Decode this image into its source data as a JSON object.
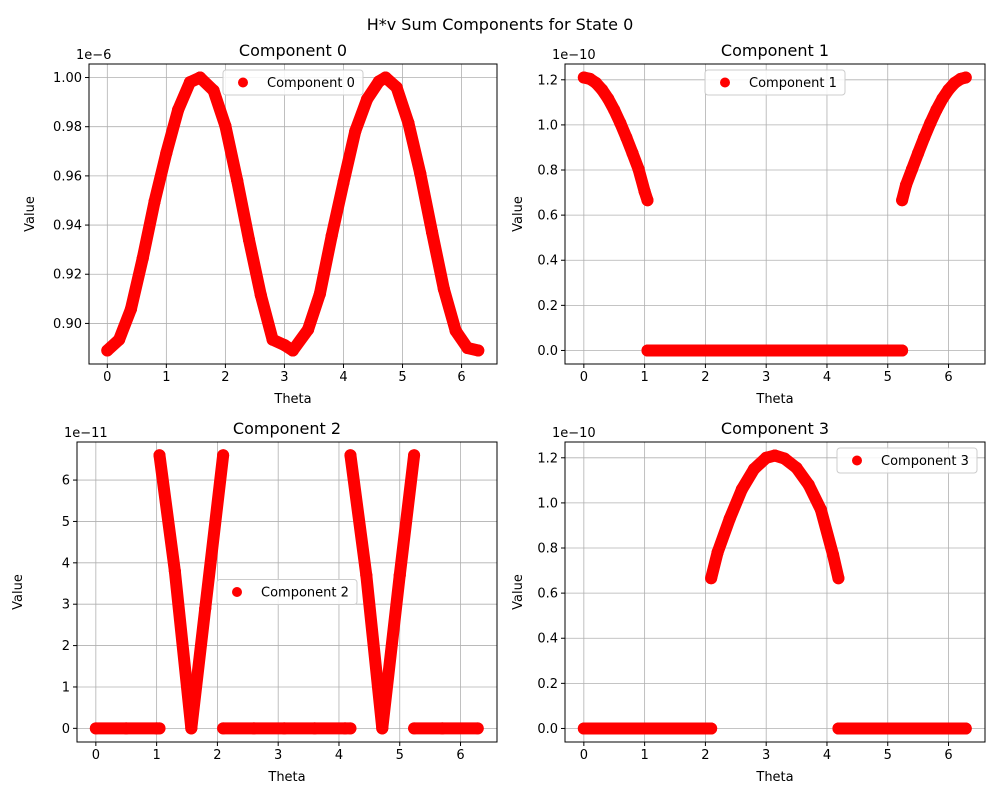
{
  "figure": {
    "title": "H*v Sum Components for State 0"
  },
  "chart_data": [
    {
      "type": "scatter",
      "title": "Component 0",
      "xlabel": "Theta",
      "ylabel": "Value",
      "scale_label": "1e−6",
      "xlim": [
        -0.31,
        6.6
      ],
      "ylim": [
        0.8835,
        1.0055
      ],
      "xticks": [
        0,
        1,
        2,
        3,
        4,
        5,
        6
      ],
      "xtick_labels": [
        "0",
        "1",
        "2",
        "3",
        "4",
        "5",
        "6"
      ],
      "yticks": [
        0.9,
        0.92,
        0.94,
        0.96,
        0.98,
        1.0
      ],
      "ytick_labels": [
        "0.90",
        "0.92",
        "0.94",
        "0.96",
        "0.98",
        "1.00"
      ],
      "grid": true,
      "legend": {
        "label": "Component 0",
        "position": "upper center"
      },
      "series": [
        {
          "name": "Component 0",
          "color": "#ff0000",
          "x": [
            0,
            0.2,
            0.4,
            0.6,
            0.8,
            1.0,
            1.2,
            1.4,
            1.5708,
            1.8,
            2.0,
            2.2,
            2.4,
            2.6,
            2.8,
            3.0,
            3.1416,
            3.4,
            3.6,
            3.8,
            4.0,
            4.2,
            4.4,
            4.6,
            4.7124,
            4.9,
            5.1,
            5.3,
            5.5,
            5.7,
            5.9,
            6.1,
            6.2832
          ],
          "y": [
            0.889,
            0.8934,
            0.9058,
            0.9265,
            0.9495,
            0.9693,
            0.9869,
            0.9981,
            1.0,
            0.9947,
            0.9803,
            0.9581,
            0.934,
            0.9115,
            0.8934,
            0.8912,
            0.889,
            0.8975,
            0.912,
            0.9356,
            0.9573,
            0.9782,
            0.9912,
            0.9984,
            1.0,
            0.996,
            0.9815,
            0.961,
            0.9371,
            0.914,
            0.897,
            0.89,
            0.889
          ]
        }
      ]
    },
    {
      "type": "scatter",
      "title": "Component 1",
      "xlabel": "Theta",
      "ylabel": "Value",
      "scale_label": "1e−10",
      "xlim": [
        -0.31,
        6.6
      ],
      "ylim": [
        -0.06,
        1.27
      ],
      "xticks": [
        0,
        1,
        2,
        3,
        4,
        5,
        6
      ],
      "xtick_labels": [
        "0",
        "1",
        "2",
        "3",
        "4",
        "5",
        "6"
      ],
      "yticks": [
        0.0,
        0.2,
        0.4,
        0.6,
        0.8,
        1.0,
        1.2
      ],
      "ytick_labels": [
        "0.0",
        "0.2",
        "0.4",
        "0.6",
        "0.8",
        "1.0",
        "1.2"
      ],
      "grid": true,
      "legend": {
        "label": "Component 1",
        "position": "upper center"
      },
      "series": [
        {
          "name": "Component 1",
          "color": "#ff0000",
          "x": [
            0,
            0.1,
            0.2,
            0.3,
            0.4,
            0.5,
            0.6,
            0.7,
            0.8,
            0.9,
            1.0,
            1.0472,
            1.0473,
            1.5,
            2.0,
            2.5,
            3.0,
            3.5,
            4.0,
            4.5,
            5.0,
            5.2359,
            5.236,
            5.3,
            5.4,
            5.5,
            5.6,
            5.7,
            5.8,
            5.9,
            6.0,
            6.1,
            6.2,
            6.2832
          ],
          "y": [
            1.21,
            1.204,
            1.186,
            1.156,
            1.116,
            1.066,
            1.008,
            0.944,
            0.875,
            0.804,
            0.705,
            0.666,
            0.0,
            0.0,
            0.0,
            0.0,
            0.0,
            0.0,
            0.0,
            0.0,
            0.0,
            0.0,
            0.666,
            0.733,
            0.804,
            0.875,
            0.944,
            1.008,
            1.066,
            1.116,
            1.156,
            1.186,
            1.204,
            1.21
          ]
        }
      ]
    },
    {
      "type": "scatter",
      "title": "Component 2",
      "xlabel": "Theta",
      "ylabel": "Value",
      "scale_label": "1e−11",
      "xlim": [
        -0.31,
        6.6
      ],
      "ylim": [
        -0.33,
        6.92
      ],
      "xticks": [
        0,
        1,
        2,
        3,
        4,
        5,
        6
      ],
      "xtick_labels": [
        "0",
        "1",
        "2",
        "3",
        "4",
        "5",
        "6"
      ],
      "yticks": [
        0,
        1,
        2,
        3,
        4,
        5,
        6
      ],
      "ytick_labels": [
        "0",
        "1",
        "2",
        "3",
        "4",
        "5",
        "6"
      ],
      "grid": true,
      "legend": {
        "label": "Component 2",
        "position": "center"
      },
      "series": [
        {
          "name": "Component 2",
          "color": "#ff0000",
          "x": [
            0,
            0.5,
            1.0,
            1.0471,
            1.0472,
            1.3,
            1.5708,
            1.8,
            2.0944,
            2.0945,
            2.6,
            3.1,
            3.6,
            4.1,
            4.1887,
            4.1888,
            4.45,
            4.7124,
            5.0,
            5.236,
            5.2361,
            5.7,
            6.2832
          ],
          "y": [
            0,
            0,
            0,
            0,
            6.6,
            3.8,
            0,
            2.9,
            6.6,
            0,
            0,
            0,
            0,
            0,
            0,
            6.6,
            3.7,
            0,
            3.7,
            6.6,
            0,
            0,
            0
          ]
        }
      ]
    },
    {
      "type": "scatter",
      "title": "Component 3",
      "xlabel": "Theta",
      "ylabel": "Value",
      "scale_label": "1e−10",
      "xlim": [
        -0.31,
        6.6
      ],
      "ylim": [
        -0.06,
        1.27
      ],
      "xticks": [
        0,
        1,
        2,
        3,
        4,
        5,
        6
      ],
      "xtick_labels": [
        "0",
        "1",
        "2",
        "3",
        "4",
        "5",
        "6"
      ],
      "yticks": [
        0.0,
        0.2,
        0.4,
        0.6,
        0.8,
        1.0,
        1.2
      ],
      "ytick_labels": [
        "0.0",
        "0.2",
        "0.4",
        "0.6",
        "0.8",
        "1.0",
        "1.2"
      ],
      "grid": true,
      "legend": {
        "label": "Component 3",
        "position": "upper right"
      },
      "series": [
        {
          "name": "Component 3",
          "color": "#ff0000",
          "x": [
            0,
            0.5,
            1.0,
            1.5,
            2.0,
            2.0943,
            2.0944,
            2.2,
            2.4,
            2.6,
            2.8,
            3.0,
            3.1416,
            3.3,
            3.5,
            3.7,
            3.9,
            4.1,
            4.1888,
            4.1889,
            4.6,
            5.1,
            5.6,
            6.2832
          ],
          "y": [
            0,
            0,
            0,
            0,
            0,
            0,
            0.666,
            0.78,
            0.93,
            1.06,
            1.15,
            1.2,
            1.21,
            1.197,
            1.155,
            1.08,
            0.97,
            0.77,
            0.666,
            0,
            0,
            0,
            0,
            0
          ]
        }
      ]
    }
  ]
}
